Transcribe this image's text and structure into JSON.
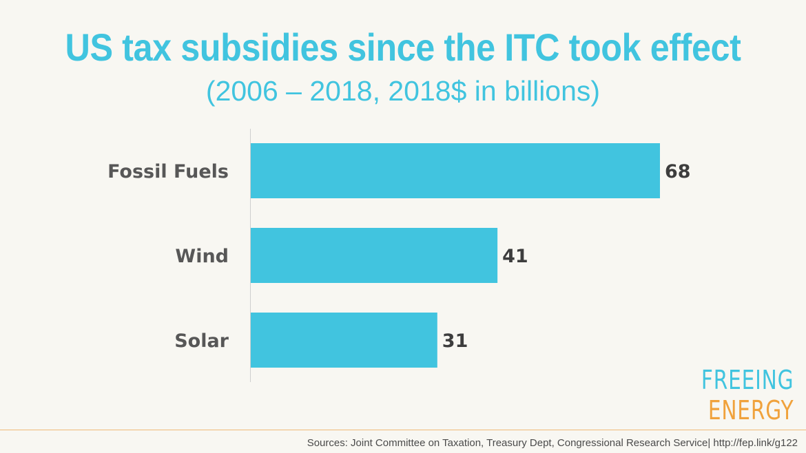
{
  "chart_data": {
    "type": "bar",
    "orientation": "horizontal",
    "title": "US tax subsidies since the ITC took effect",
    "subtitle": "(2006 – 2018, 2018$ in billions)",
    "categories": [
      "Fossil Fuels",
      "Wind",
      "Solar"
    ],
    "values": [
      68,
      41,
      31
    ],
    "xlim": [
      0,
      68
    ],
    "xlabel": "",
    "ylabel": "",
    "grid": false,
    "bar_color": "#41c4df"
  },
  "logo": {
    "line1": "FREEING",
    "line2": "ENERGY"
  },
  "footer": {
    "sources": "Sources: Joint Committee on Taxation, Treasury Dept, Congressional Research Service| http://fep.link/g122"
  }
}
